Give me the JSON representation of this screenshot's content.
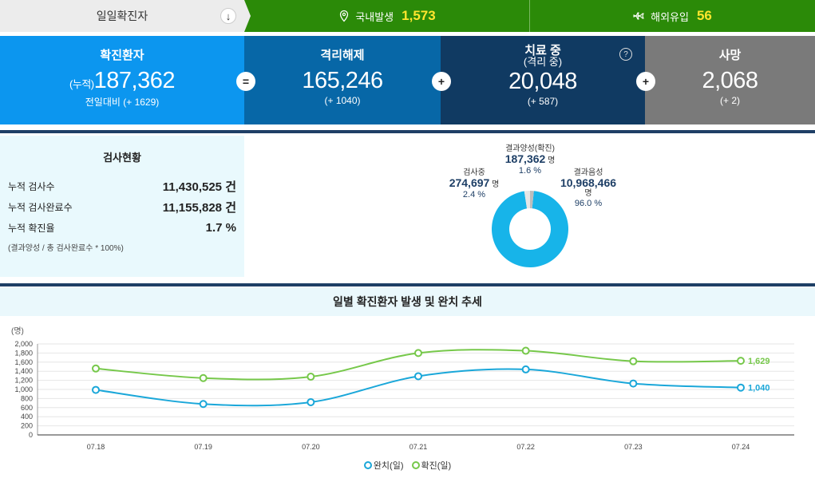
{
  "topbar": {
    "daily_label": "일일확진자",
    "down_icon": "↓",
    "domestic_label": "국내발생",
    "domestic_value": "1,573",
    "overseas_label": "해외유입",
    "overseas_value": "56"
  },
  "stats": {
    "confirmed": {
      "title": "확진환자",
      "prefix": "(누적)",
      "value": "187,362",
      "sub": "전일대비 (+ 1629)"
    },
    "released": {
      "title": "격리해제",
      "value": "165,246",
      "sub": "(+ 1040)"
    },
    "treating": {
      "title": "치료 중",
      "subtitle": "(격리 중)",
      "value": "20,048",
      "sub": "(+ 587)"
    },
    "deaths": {
      "title": "사망",
      "value": "2,068",
      "sub": "(+ 2)"
    },
    "op_equals": "=",
    "op_plus": "+",
    "help": "?"
  },
  "tests": {
    "title": "검사현황",
    "rows": [
      {
        "label": "누적 검사수",
        "value": "11,430,525 건"
      },
      {
        "label": "누적 검사완료수",
        "value": "11,155,828 건"
      },
      {
        "label": "누적 확진율",
        "value": "1.7 %"
      }
    ],
    "note": "(결과양성 / 총 검사완료수 * 100%)"
  },
  "donut": {
    "positive": {
      "label": "결과양성(확진)",
      "value": "187,362",
      "unit": "명",
      "pct": "1.6 %",
      "frac": 0.016
    },
    "testing": {
      "label": "검사중",
      "value": "274,697",
      "unit": "명",
      "pct": "2.4 %",
      "frac": 0.024
    },
    "negative": {
      "label": "결과음성",
      "value": "10,968,466",
      "unit": "명",
      "pct": "96.0 %",
      "frac": 0.96
    },
    "colors": {
      "negative": "#17b4e9",
      "positive": "#bdbdbd",
      "testing": "#e6e6e6"
    }
  },
  "chart_head": "일별 확진환자 발생 및 완치 추세",
  "chart_data": {
    "type": "line",
    "ylabel": "(명)",
    "ylim": [
      0,
      2000
    ],
    "yticks": [
      "0",
      "200",
      "400",
      "600",
      "800",
      "1,000",
      "1,200",
      "1,400",
      "1,600",
      "1,800",
      "2,000"
    ],
    "categories": [
      "07.18",
      "07.19",
      "07.20",
      "07.21",
      "07.22",
      "07.23",
      "07.24"
    ],
    "series": [
      {
        "name": "완치(일)",
        "color": "#1aa7d9",
        "values": [
          990,
          680,
          720,
          1290,
          1440,
          1130,
          1040
        ],
        "last_label": "1,040"
      },
      {
        "name": "확진(일)",
        "color": "#76c84a",
        "values": [
          1460,
          1250,
          1280,
          1800,
          1850,
          1620,
          1629
        ],
        "last_label": "1,629"
      }
    ]
  }
}
